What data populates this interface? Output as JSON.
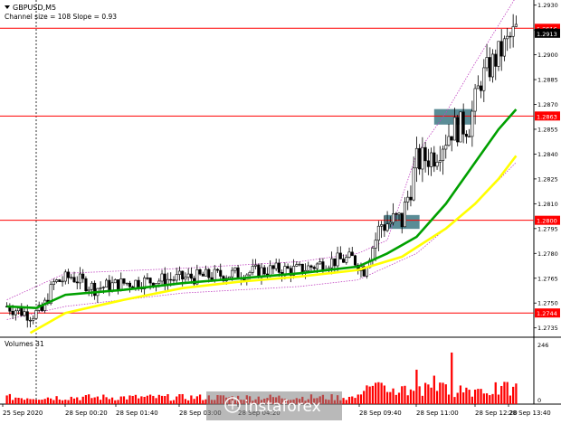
{
  "header": {
    "symbol": "GBPUSD,M5",
    "indicator": "Channel size = 108 Slope = 0.93"
  },
  "volumes_label": "Volumes 31",
  "watermark": "instaforex",
  "colors": {
    "up": "#000000",
    "down": "#000000",
    "ma_fast": "#00a000",
    "ma_slow": "#ffff00",
    "channel": "#c040c0",
    "level": "#ff0000",
    "volume": "#ff0000",
    "zone": "#5a8c96"
  },
  "chart_data": {
    "type": "candlestick",
    "ylim": [
      1.2731,
      1.2932
    ],
    "y_ticks": [
      "1.2930",
      "1.2915",
      "1.2900",
      "1.2885",
      "1.2870",
      "1.2855",
      "1.2840",
      "1.2825",
      "1.2810",
      "1.2795",
      "1.2780",
      "1.2765",
      "1.2750",
      "1.2735"
    ],
    "current_price": "1.2913",
    "levels": [
      {
        "label": "1.2916",
        "value": 1.2916
      },
      {
        "label": "1.2863",
        "value": 1.2863
      },
      {
        "label": "1.2800",
        "value": 1.28
      },
      {
        "label": "1.2744",
        "value": 1.2744
      }
    ],
    "x_labels": [
      "25 Sep 2020",
      "28 Sep 00:20",
      "28 Sep 01:40",
      "28 Sep 03:00",
      "28 Sep 04:20",
      "28 Sep 09:40",
      "28 Sep 11:00",
      "28 Sep 12:20",
      "28 Sep 13:40"
    ],
    "anchors": [
      [
        0,
        1.2748
      ],
      [
        8,
        1.2743
      ],
      [
        12,
        1.2745
      ],
      [
        16,
        1.2762
      ],
      [
        22,
        1.2766
      ],
      [
        30,
        1.2759
      ],
      [
        40,
        1.2762
      ],
      [
        60,
        1.2765
      ],
      [
        80,
        1.2768
      ],
      [
        90,
        1.277
      ],
      [
        100,
        1.277
      ],
      [
        110,
        1.2775
      ],
      [
        118,
        1.2777
      ],
      [
        122,
        1.277
      ],
      [
        128,
        1.2798
      ],
      [
        132,
        1.2799
      ],
      [
        135,
        1.28
      ],
      [
        140,
        1.2835
      ],
      [
        146,
        1.284
      ],
      [
        152,
        1.2855
      ],
      [
        158,
        1.2858
      ],
      [
        162,
        1.2885
      ],
      [
        168,
        1.29
      ],
      [
        174,
        1.2915
      ]
    ],
    "ma_fast": [
      [
        0,
        1.2748
      ],
      [
        10,
        1.2747
      ],
      [
        20,
        1.2755
      ],
      [
        40,
        1.2758
      ],
      [
        60,
        1.2762
      ],
      [
        80,
        1.2765
      ],
      [
        100,
        1.2768
      ],
      [
        120,
        1.2772
      ],
      [
        130,
        1.278
      ],
      [
        140,
        1.279
      ],
      [
        150,
        1.281
      ],
      [
        160,
        1.2835
      ],
      [
        168,
        1.2855
      ],
      [
        174,
        1.2867
      ]
    ],
    "ma_slow": [
      [
        8,
        1.2732
      ],
      [
        20,
        1.2744
      ],
      [
        40,
        1.2752
      ],
      [
        60,
        1.2759
      ],
      [
        80,
        1.2763
      ],
      [
        100,
        1.2766
      ],
      [
        120,
        1.277
      ],
      [
        135,
        1.2778
      ],
      [
        150,
        1.2795
      ],
      [
        160,
        1.281
      ],
      [
        168,
        1.2825
      ],
      [
        174,
        1.2839
      ]
    ],
    "channel_upper": [
      [
        0,
        1.2752
      ],
      [
        20,
        1.2768
      ],
      [
        60,
        1.2771
      ],
      [
        100,
        1.2775
      ],
      [
        120,
        1.278
      ],
      [
        130,
        1.2788
      ],
      [
        140,
        1.284
      ],
      [
        150,
        1.2865
      ],
      [
        160,
        1.2895
      ],
      [
        174,
        1.2935
      ]
    ],
    "channel_lower": [
      [
        0,
        1.274
      ],
      [
        20,
        1.2748
      ],
      [
        60,
        1.2756
      ],
      [
        100,
        1.276
      ],
      [
        120,
        1.2764
      ],
      [
        130,
        1.2772
      ],
      [
        140,
        1.278
      ],
      [
        150,
        1.2795
      ],
      [
        160,
        1.281
      ],
      [
        174,
        1.2835
      ]
    ],
    "zones": [
      {
        "x0": 129,
        "x1": 141,
        "y_bottom": 1.2797,
        "y_top": 1.2801
      },
      {
        "x0": 146,
        "x1": 159,
        "y_bottom": 1.286,
        "y_top": 1.2865
      }
    ],
    "volume_scale": {
      "max": 246,
      "ticks": [
        "246",
        "0"
      ]
    }
  }
}
